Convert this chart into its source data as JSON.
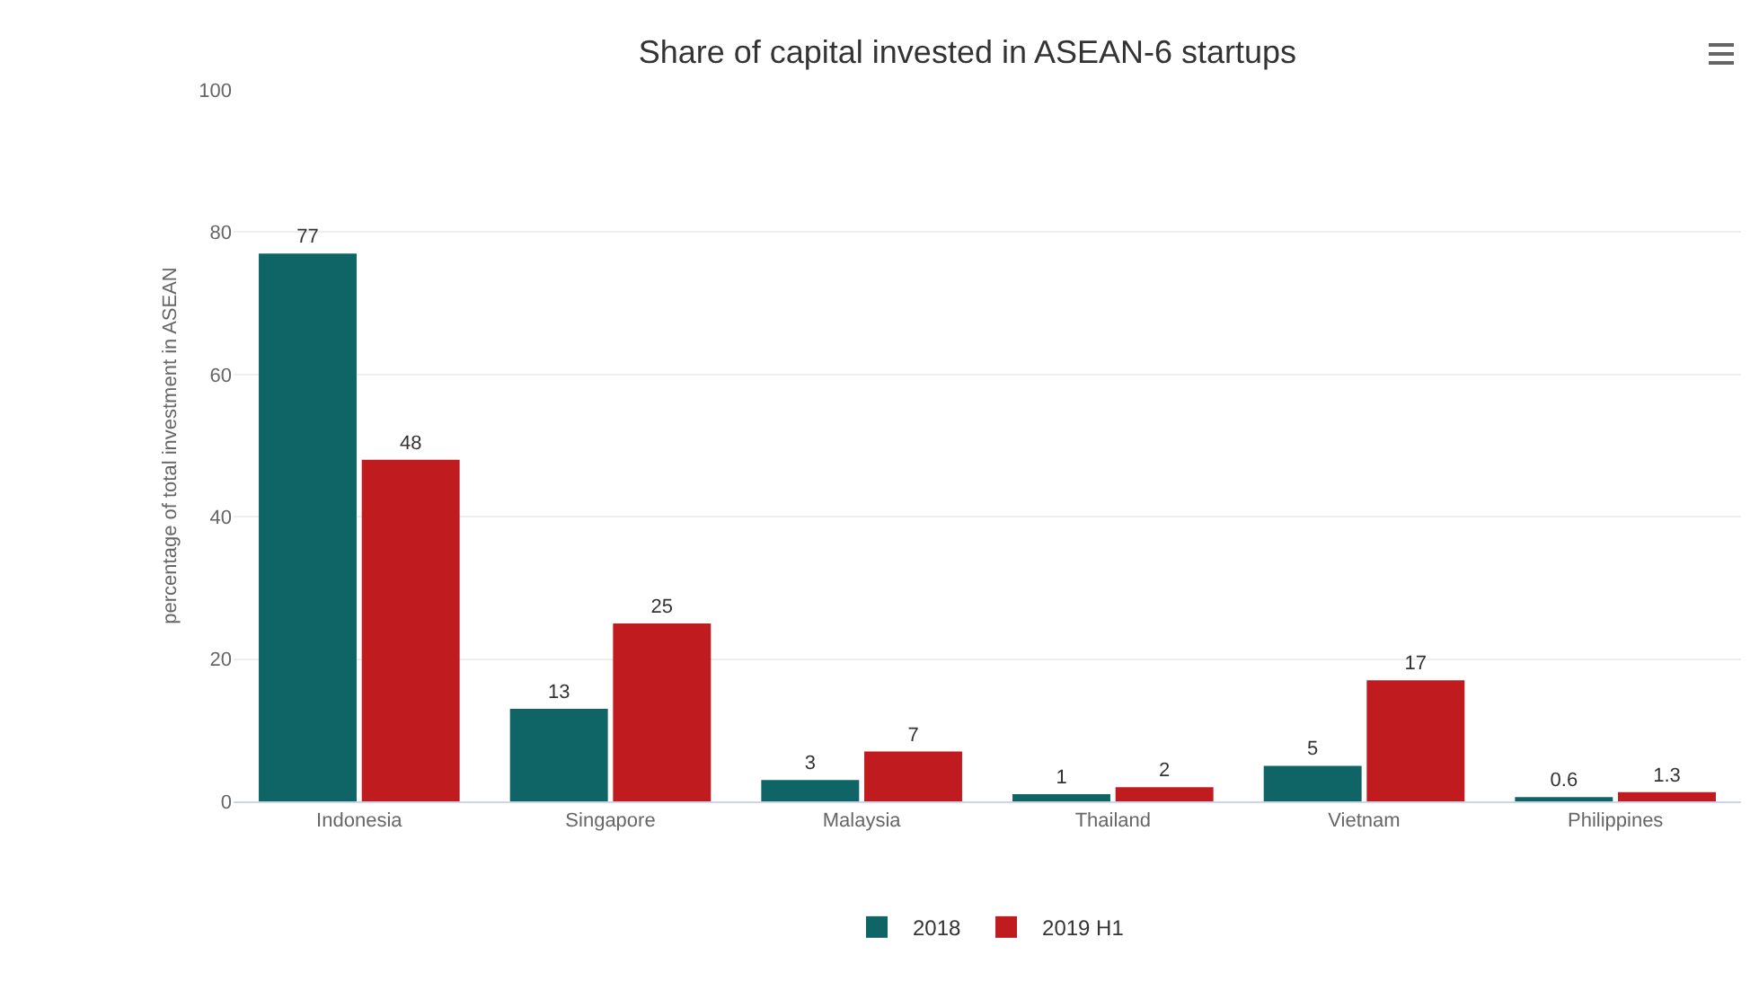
{
  "chart_data": {
    "type": "bar",
    "title": "Share of capital invested in ASEAN-6 startups",
    "ylabel": "percentage of total investment in ASEAN",
    "categories": [
      "Indonesia",
      "Singapore",
      "Malaysia",
      "Thailand",
      "Vietnam",
      "Philippines"
    ],
    "series": [
      {
        "name": "2018",
        "color": "#0f6466",
        "values": [
          77,
          13,
          3,
          1,
          5,
          0.6
        ]
      },
      {
        "name": "2019 H1",
        "color": "#c01b1f",
        "values": [
          48,
          25,
          7,
          2,
          17,
          1.3
        ]
      }
    ],
    "ylim": [
      0,
      100
    ],
    "yticks": [
      0,
      20,
      40,
      60,
      80,
      100
    ],
    "grid": "y",
    "legend": "bottom",
    "data_labels": true
  }
}
